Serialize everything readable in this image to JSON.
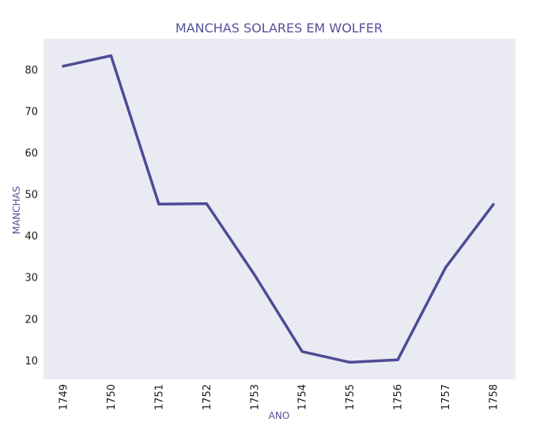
{
  "chart_data": {
    "type": "line",
    "title": "MANCHAS SOLARES EM WOLFER",
    "xlabel": "ANO",
    "ylabel": "MANCHAS",
    "x": [
      "1749",
      "1750",
      "1751",
      "1752",
      "1753",
      "1754",
      "1755",
      "1756",
      "1757",
      "1758"
    ],
    "series": [
      {
        "values": [
          80.9,
          83.4,
          47.7,
          47.8,
          30.7,
          12.2,
          9.6,
          10.2,
          32.4,
          47.6
        ]
      }
    ],
    "ylim": [
      5.5,
      87.5
    ],
    "yticks": [
      10,
      20,
      30,
      40,
      50,
      60,
      70,
      80
    ],
    "grid": false,
    "colors": {
      "line": "#4f4b96",
      "plot_bg": "#eaeaf2",
      "label": "#55509a",
      "tick": "#1a1a1a"
    }
  }
}
